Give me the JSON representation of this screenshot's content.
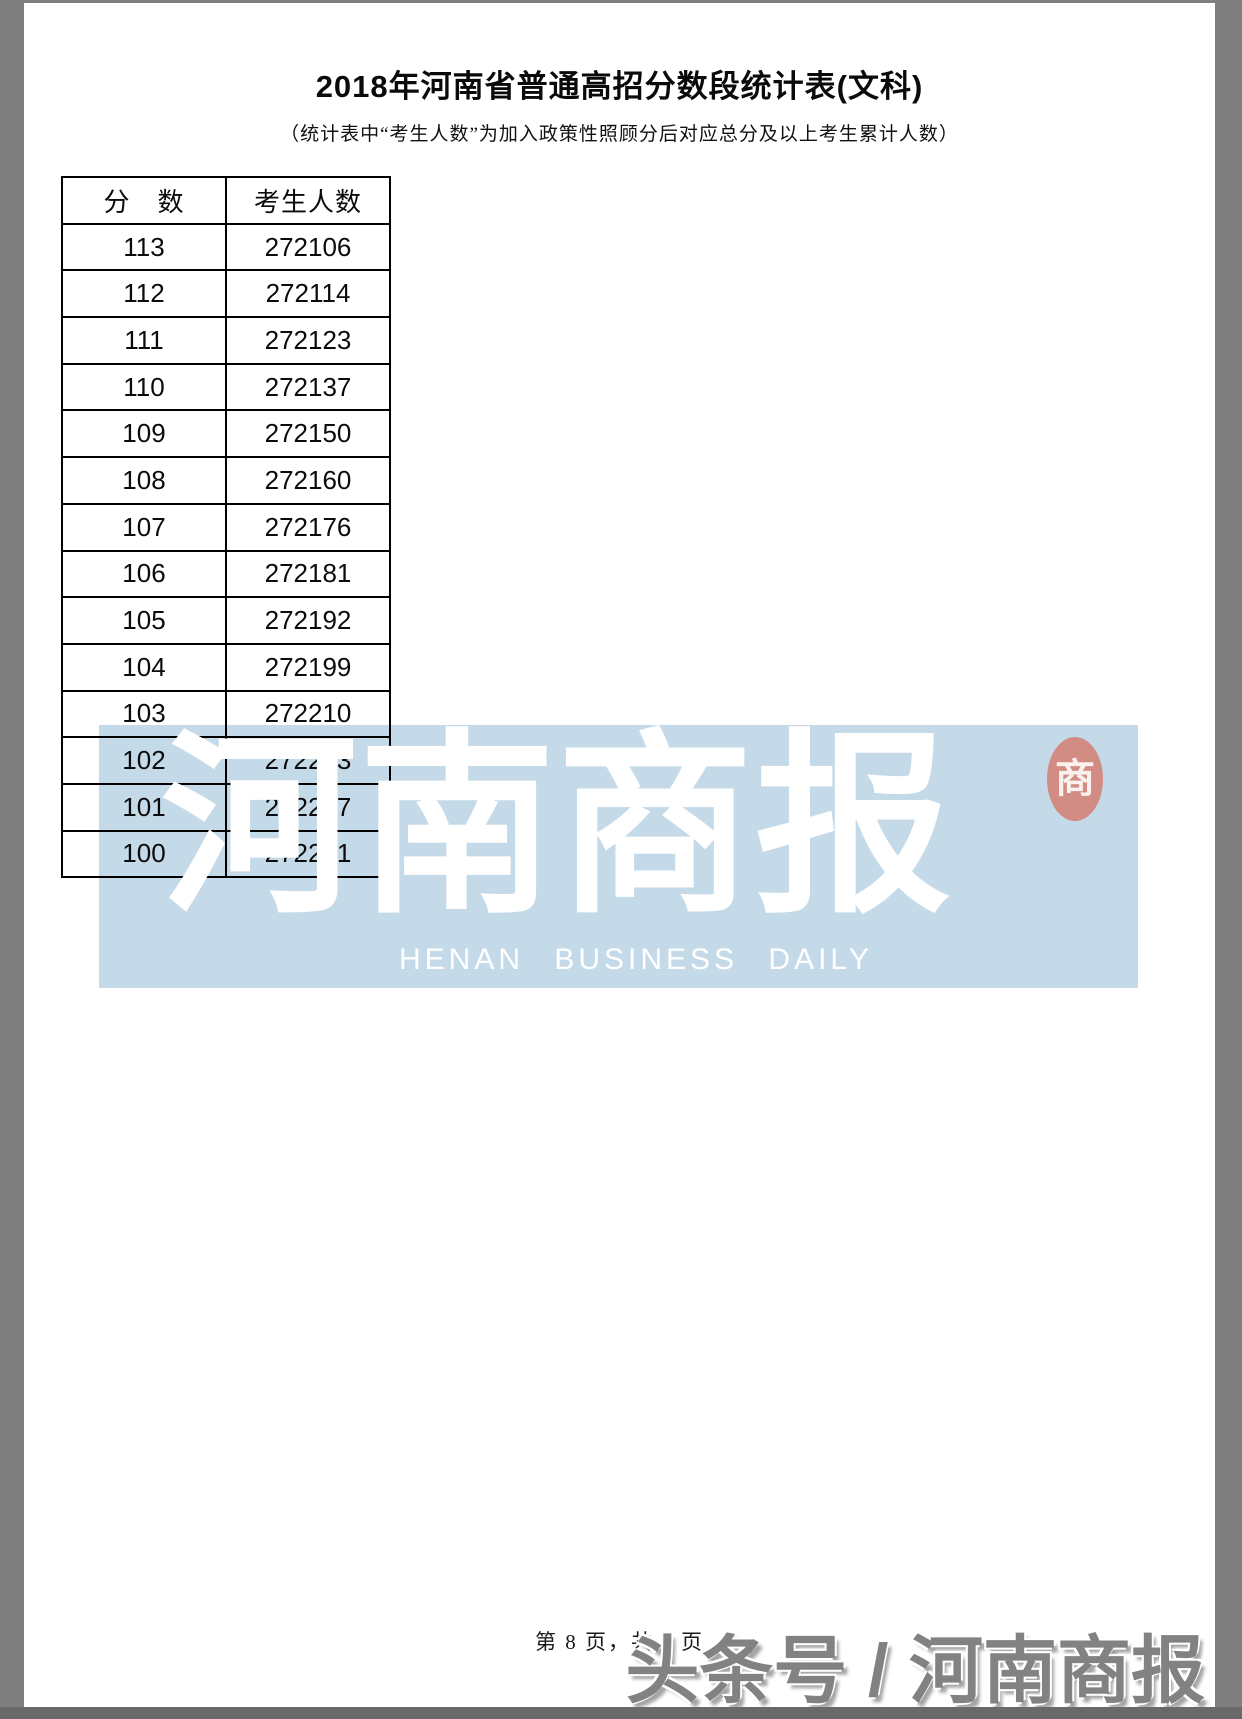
{
  "page": {
    "title": "2018年河南省普通高招分数段统计表(文科)",
    "subtitle": "（统计表中“考生人数”为加入政策性照顾分后对应总分及以上考生累计人数）",
    "footer_page": "第 8 页，共 8 页"
  },
  "table": {
    "headers": [
      "分　数",
      "考生人数"
    ],
    "rows": [
      [
        "113",
        "272106"
      ],
      [
        "112",
        "272114"
      ],
      [
        "111",
        "272123"
      ],
      [
        "110",
        "272137"
      ],
      [
        "109",
        "272150"
      ],
      [
        "108",
        "272160"
      ],
      [
        "107",
        "272176"
      ],
      [
        "106",
        "272181"
      ],
      [
        "105",
        "272192"
      ],
      [
        "104",
        "272199"
      ],
      [
        "103",
        "272210"
      ],
      [
        "102",
        "272223"
      ],
      [
        "101",
        "272237"
      ],
      [
        "100",
        "272251"
      ]
    ]
  },
  "watermark": {
    "cn_text": "河南商报",
    "en_text": "HENAN BUSINESS DAILY",
    "seal_char": "商",
    "band_color": "#c5dae8",
    "seal_color": "#d4867c"
  },
  "branding": {
    "toutiao_watermark": "头条号 / 河南商报"
  }
}
